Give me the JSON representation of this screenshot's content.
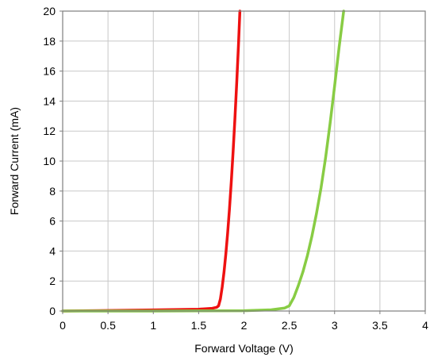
{
  "chart_data": {
    "type": "line",
    "title": "",
    "xlabel": "Forward Voltage (V)",
    "ylabel": "Forward Current (mA)",
    "xlim": [
      0,
      4
    ],
    "ylim": [
      0,
      20
    ],
    "xticks": [
      0,
      0.5,
      1,
      1.5,
      2,
      2.5,
      3,
      3.5,
      4
    ],
    "yticks": [
      0,
      2,
      4,
      6,
      8,
      10,
      12,
      14,
      16,
      18,
      20
    ],
    "xtick_labels": [
      "0",
      "0.5",
      "1",
      "1.5",
      "2",
      "2.5",
      "3",
      "3.5",
      "4"
    ],
    "ytick_labels": [
      "0",
      "2",
      "4",
      "6",
      "8",
      "10",
      "12",
      "14",
      "16",
      "18",
      "20"
    ],
    "grid": true,
    "legend": "none",
    "series": [
      {
        "color": "#ee1111",
        "x": [
          0,
          0.5,
          1.0,
          1.5,
          1.65,
          1.7,
          1.72,
          1.74,
          1.76,
          1.78,
          1.8,
          1.82,
          1.84,
          1.86,
          1.88,
          1.9,
          1.92,
          1.94,
          1.955
        ],
        "y": [
          0.0,
          0.03,
          0.07,
          0.12,
          0.18,
          0.25,
          0.35,
          0.8,
          1.6,
          2.6,
          3.8,
          5.2,
          6.8,
          8.6,
          10.6,
          12.8,
          15.2,
          17.8,
          20
        ]
      },
      {
        "color": "#88cc44",
        "x": [
          0,
          1.0,
          2.0,
          2.3,
          2.45,
          2.5,
          2.55,
          2.6,
          2.65,
          2.7,
          2.75,
          2.8,
          2.85,
          2.9,
          2.95,
          3.0,
          3.05,
          3.1
        ],
        "y": [
          0.0,
          0.0,
          0.02,
          0.08,
          0.2,
          0.35,
          0.9,
          1.7,
          2.6,
          3.7,
          5.0,
          6.5,
          8.2,
          10.2,
          12.5,
          15.0,
          17.6,
          20
        ]
      }
    ]
  }
}
